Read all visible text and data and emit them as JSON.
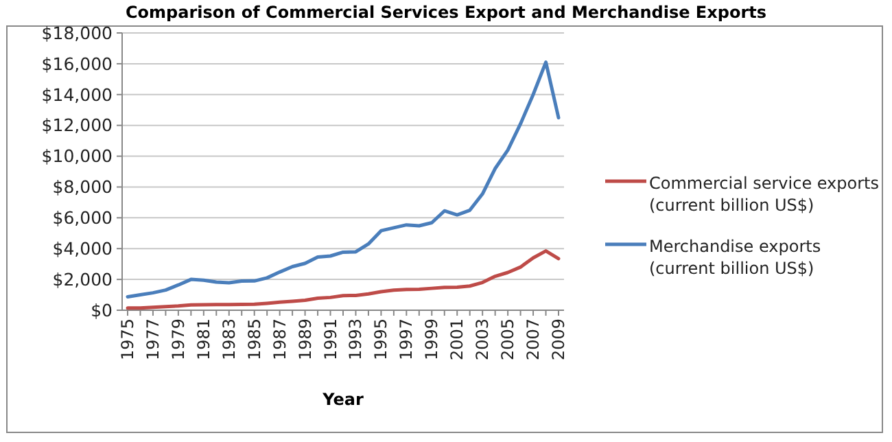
{
  "chart_data": {
    "type": "line",
    "title": "Comparison of Commercial Services Export and Merchandise Exports",
    "xlabel": "Year",
    "categories": [
      "1975",
      null,
      "1977",
      null,
      "1979",
      null,
      "1981",
      null,
      "1983",
      null,
      "1985",
      null,
      "1987",
      null,
      "1989",
      null,
      "1991",
      null,
      "1993",
      null,
      "1995",
      null,
      "1997",
      null,
      "1999",
      null,
      "2001",
      null,
      "2003",
      null,
      "2005",
      null,
      "2007",
      null,
      "2009"
    ],
    "series": [
      {
        "name": "Commercial service exports (current billion US$)",
        "color": "#be4b48",
        "values": [
          140,
          150,
          190,
          230,
          280,
          350,
          360,
          370,
          370,
          380,
          390,
          450,
          520,
          580,
          650,
          780,
          830,
          950,
          960,
          1060,
          1200,
          1300,
          1350,
          1360,
          1420,
          1480,
          1490,
          1570,
          1800,
          2200,
          2450,
          2800,
          3400,
          3850,
          3350
        ]
      },
      {
        "name": "Merchandise exports (current billion US$)",
        "color": "#4a7ebb",
        "values": [
          870,
          1000,
          1130,
          1310,
          1640,
          2000,
          1950,
          1830,
          1780,
          1890,
          1900,
          2100,
          2480,
          2830,
          3040,
          3450,
          3520,
          3770,
          3790,
          4300,
          5160,
          5350,
          5540,
          5480,
          5680,
          6450,
          6190,
          6490,
          7550,
          9200,
          10400,
          12100,
          14000,
          16100,
          12500
        ]
      }
    ],
    "ylim": [
      0,
      18000
    ],
    "yticks": [
      {
        "value": 0,
        "label": "$0"
      },
      {
        "value": 2000,
        "label": "$2,000"
      },
      {
        "value": 4000,
        "label": "$4,000"
      },
      {
        "value": 6000,
        "label": "$6,000"
      },
      {
        "value": 8000,
        "label": "$8,000"
      },
      {
        "value": 10000,
        "label": "$10,000"
      },
      {
        "value": 12000,
        "label": "$12,000"
      },
      {
        "value": 14000,
        "label": "$14,000"
      },
      {
        "value": 16000,
        "label": "$16,000"
      },
      {
        "value": 18000,
        "label": "$18,000"
      }
    ],
    "grid": "y",
    "legend": "right",
    "marker": "none",
    "line_style": "solid"
  }
}
